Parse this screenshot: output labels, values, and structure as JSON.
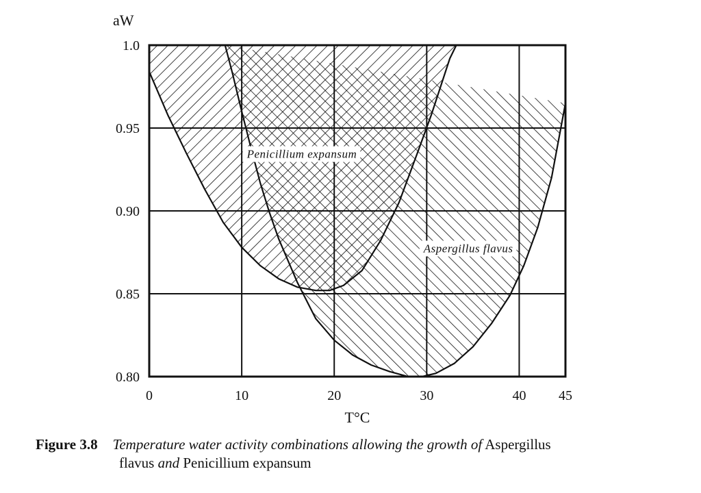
{
  "chart_data": {
    "type": "area",
    "ylabel": "aW",
    "xlabel": "T°C",
    "xlim": [
      0,
      45
    ],
    "ylim": [
      0.8,
      1.0
    ],
    "xticks": [
      0,
      10,
      20,
      30,
      40,
      45
    ],
    "yticks": [
      0.8,
      0.85,
      0.9,
      0.95,
      1.0
    ],
    "ytick_labels": [
      "0.80",
      "0.85",
      "0.90",
      "0.95",
      "1.0"
    ],
    "grid": true,
    "series": [
      {
        "name": "Penicillium expansum",
        "hatch": "diagonal-up",
        "x": [
          -0.5,
          0,
          2,
          4,
          6,
          8,
          10,
          12,
          14,
          16,
          18,
          19.5,
          21,
          23,
          25,
          27,
          29,
          30.5,
          31.5,
          32.5,
          33.2
        ],
        "y": [
          1.0,
          0.984,
          0.958,
          0.935,
          0.913,
          0.893,
          0.878,
          0.867,
          0.859,
          0.854,
          0.852,
          0.852,
          0.855,
          0.864,
          0.882,
          0.905,
          0.935,
          0.958,
          0.975,
          0.992,
          1.0
        ]
      },
      {
        "name": "Aspergillus flavus",
        "hatch": "diagonal-down",
        "x": [
          8.2,
          9,
          10,
          11,
          12,
          13,
          14,
          16,
          18,
          20,
          22,
          24,
          26,
          28,
          29.5,
          31,
          33,
          35,
          37,
          39,
          40.5,
          42,
          43.5,
          45
        ],
        "y": [
          1.0,
          0.983,
          0.96,
          0.938,
          0.917,
          0.899,
          0.883,
          0.857,
          0.835,
          0.822,
          0.813,
          0.807,
          0.803,
          0.8,
          0.8,
          0.802,
          0.808,
          0.818,
          0.832,
          0.849,
          0.867,
          0.89,
          0.92,
          0.965
        ]
      }
    ],
    "annotations": [
      {
        "text": "Penicillium expansum",
        "x": 16.5,
        "y": 0.932
      },
      {
        "text": "Aspergillus flavus",
        "x": 34.5,
        "y": 0.875
      }
    ]
  },
  "caption": {
    "number": "Figure 3.8",
    "text_italic_1": "Temperature water activity combinations allowing the growth of",
    "text_upright_1": "Aspergillus",
    "text_upright_2": "flavus",
    "text_italic_2": "and",
    "text_upright_3": "Penicillium expansum"
  }
}
